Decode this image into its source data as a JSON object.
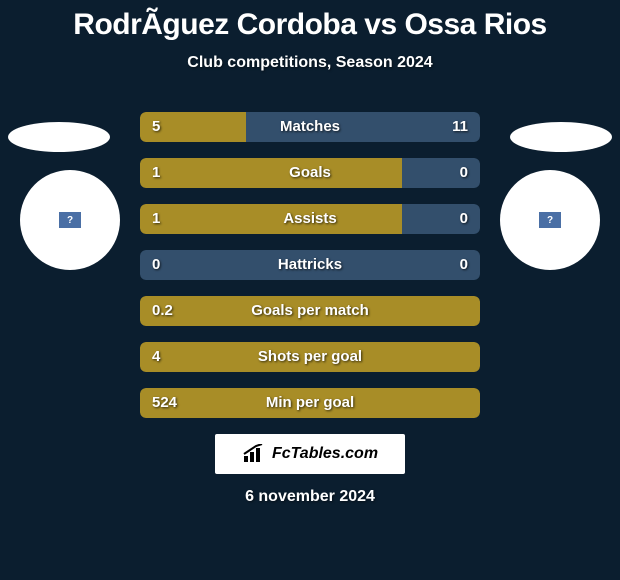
{
  "title": "RodrÃ­guez Cordoba vs Ossa Rios",
  "subtitle": "Club competitions, Season 2024",
  "colors": {
    "background": "#0b1e2f",
    "player1": "#a88d27",
    "player2": "#334f6c",
    "text": "#ffffff"
  },
  "stats": [
    {
      "label": "Matches",
      "left_value": "5",
      "right_value": "11",
      "left_pct": 31.25,
      "right_pct": 68.75,
      "left_color": "#a88d27",
      "right_color": "#334f6c"
    },
    {
      "label": "Goals",
      "left_value": "1",
      "right_value": "0",
      "left_pct": 77,
      "right_pct": 23,
      "left_color": "#a88d27",
      "right_color": "#334f6c"
    },
    {
      "label": "Assists",
      "left_value": "1",
      "right_value": "0",
      "left_pct": 77,
      "right_pct": 23,
      "left_color": "#a88d27",
      "right_color": "#334f6c"
    },
    {
      "label": "Hattricks",
      "left_value": "0",
      "right_value": "0",
      "left_pct": 0,
      "right_pct": 0,
      "single_color": "#334f6c"
    },
    {
      "label": "Goals per match",
      "left_value": "0.2",
      "right_value": "",
      "left_pct": 100,
      "right_pct": 0,
      "single_color": "#a88d27"
    },
    {
      "label": "Shots per goal",
      "left_value": "4",
      "right_value": "",
      "left_pct": 100,
      "right_pct": 0,
      "single_color": "#a88d27"
    },
    {
      "label": "Min per goal",
      "left_value": "524",
      "right_value": "",
      "left_pct": 100,
      "right_pct": 0,
      "single_color": "#a88d27"
    }
  ],
  "footer_brand": "FcTables.com",
  "footer_date": "6 november 2024"
}
